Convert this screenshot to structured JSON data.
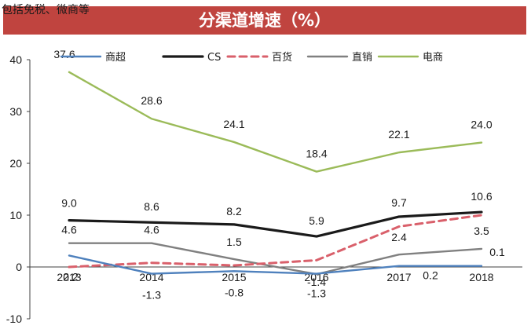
{
  "header": {
    "note": "包括免税、微商等",
    "title": "分渠道增速（%）"
  },
  "chart_data": {
    "type": "line",
    "title": "分渠道增速（%）",
    "categories": [
      "2013",
      "2014",
      "2015",
      "2016",
      "2017",
      "2018"
    ],
    "ylim": [
      -10,
      40
    ],
    "yticks": [
      -10,
      0,
      10,
      20,
      30,
      40
    ],
    "grid": false,
    "legend_position": "top",
    "series": [
      {
        "name": "商超",
        "values": [
          2.2,
          -1.3,
          -0.8,
          -1.3,
          0.2,
          0.2
        ],
        "color": "#4f81bd",
        "style": "solid",
        "labels": [
          "2.2",
          "-1.3",
          "-0.8",
          "-1.3",
          "0.2",
          ""
        ]
      },
      {
        "name": "CS",
        "values": [
          9.0,
          8.6,
          8.2,
          5.9,
          9.7,
          10.6
        ],
        "color": "#1a1a1a",
        "style": "solid",
        "labels": [
          "9.0",
          "8.6",
          "8.2",
          "5.9",
          "9.7",
          "10.6"
        ]
      },
      {
        "name": "百货",
        "values": [
          0.0,
          0.8,
          0.3,
          1.3,
          7.8,
          10.0
        ],
        "color": "#d9606b",
        "style": "dashed",
        "labels": [
          "",
          "",
          "",
          "",
          "",
          ""
        ]
      },
      {
        "name": "直销",
        "values": [
          4.6,
          4.6,
          1.5,
          -1.4,
          2.4,
          3.5
        ],
        "color": "#808080",
        "style": "solid",
        "labels": [
          "4.6",
          "4.6",
          "1.5",
          "-1.4",
          "2.4",
          "3.5"
        ]
      },
      {
        "name": "电商",
        "values": [
          37.6,
          28.6,
          24.1,
          18.4,
          22.1,
          24.0
        ],
        "color": "#9bbb59",
        "style": "solid",
        "labels": [
          "37.6",
          "28.6",
          "24.1",
          "18.4",
          "22.1",
          "24.0"
        ]
      }
    ],
    "extra_labels": [
      "0.1"
    ]
  }
}
